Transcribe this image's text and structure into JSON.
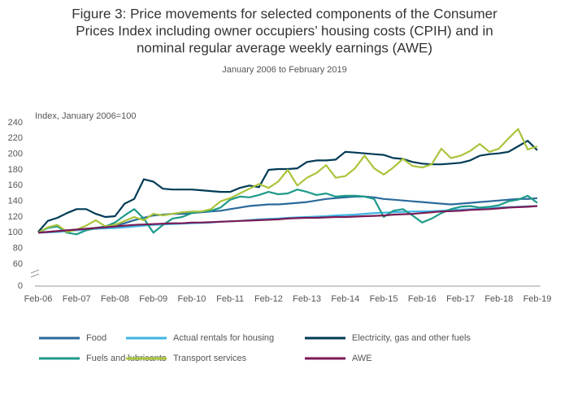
{
  "chart_data": {
    "type": "line",
    "title": [
      "Figure 3: Price movements for selected components of the Consumer",
      "Prices Index including owner occupiers’ housing costs (CPIH) and in",
      "nominal regular average weekly earnings (AWE)"
    ],
    "subtitle": "January 2006 to February 2019",
    "y_axis_label": "Index, January 2006=100",
    "categories": [
      "Feb-06",
      null,
      null,
      null,
      "Feb-07",
      null,
      null,
      null,
      "Feb-08",
      null,
      null,
      null,
      "Feb-09",
      null,
      null,
      null,
      "Feb-10",
      null,
      null,
      null,
      "Feb-11",
      null,
      null,
      null,
      "Feb-12",
      null,
      null,
      null,
      "Feb-13",
      null,
      null,
      null,
      "Feb-14",
      null,
      null,
      null,
      "Feb-15",
      null,
      null,
      null,
      "Feb-16",
      null,
      null,
      null,
      "Feb-17",
      null,
      null,
      null,
      "Feb-18",
      null,
      null,
      null,
      "Feb-19"
    ],
    "ylim": [
      0,
      240
    ],
    "yticks": [
      0,
      60,
      80,
      100,
      120,
      140,
      160,
      180,
      200,
      220,
      240
    ],
    "y_axis_break": [
      0,
      60
    ],
    "series": [
      {
        "name": "Food",
        "color": "#2b6a9b",
        "values": [
          100,
          101,
          102,
          103,
          104,
          105,
          106,
          107,
          109,
          112,
          116,
          119,
          122,
          123,
          124,
          124,
          125,
          126,
          127,
          128,
          130,
          132,
          134,
          135,
          136,
          136,
          137,
          138,
          139,
          141,
          143,
          144,
          145,
          146,
          146,
          145,
          143,
          142,
          141,
          140,
          139,
          138,
          137,
          136,
          137,
          138,
          139,
          140,
          141,
          142,
          143,
          143,
          144
        ]
      },
      {
        "name": "Actual rentals for housing",
        "color": "#3db4e6",
        "values": [
          100,
          100.5,
          101,
          102,
          103,
          104,
          105,
          105.5,
          106,
          107,
          108,
          109,
          110,
          110.5,
          111,
          111.5,
          112,
          112.5,
          113,
          114,
          114.5,
          115,
          116,
          117,
          117.5,
          118,
          119,
          119.5,
          120,
          120.5,
          121,
          122,
          122.5,
          123,
          124,
          125,
          125.5,
          126,
          126.5,
          127,
          127,
          127.5,
          128,
          129,
          129.5,
          130,
          130.5,
          131,
          132,
          132.5,
          133,
          133.5,
          134
        ]
      },
      {
        "name": "Electricity, gas and other fuels",
        "color": "#003b55",
        "values": [
          101,
          115,
          119,
          125,
          130,
          130,
          124,
          120,
          121,
          137,
          143,
          168,
          165,
          156,
          155,
          155,
          155,
          154,
          153,
          152,
          152,
          157,
          160,
          158,
          180,
          181,
          181,
          182,
          190,
          192,
          192,
          193,
          203,
          202,
          201,
          200,
          199,
          195,
          194,
          190,
          188,
          187,
          187,
          188,
          189,
          192,
          198,
          200,
          201,
          203,
          210,
          217,
          205
        ]
      },
      {
        "name": "Fuels and lubricants",
        "color": "#1e9a89",
        "values": [
          100,
          106,
          108,
          100,
          98,
          103,
          106,
          108,
          113,
          122,
          130,
          118,
          100,
          110,
          118,
          120,
          125,
          127,
          128,
          132,
          142,
          146,
          145,
          148,
          152,
          149,
          150,
          155,
          152,
          148,
          150,
          146,
          147,
          147,
          146,
          143,
          120,
          128,
          130,
          122,
          113,
          118,
          125,
          130,
          133,
          134,
          132,
          133,
          135,
          140,
          142,
          147,
          138
        ]
      },
      {
        "name": "Transport services",
        "color": "#a9c43c",
        "values": [
          100,
          107,
          110,
          101,
          104,
          109,
          116,
          108,
          110,
          115,
          120,
          116,
          124,
          122,
          124,
          126,
          127,
          127,
          130,
          140,
          144,
          150,
          156,
          162,
          157,
          165,
          180,
          160,
          170,
          176,
          186,
          170,
          172,
          182,
          198,
          182,
          174,
          183,
          194,
          185,
          183,
          187,
          207,
          195,
          198,
          204,
          213,
          203,
          207,
          220,
          232,
          206,
          210
        ]
      },
      {
        "name": "AWE",
        "color": "#7a1a53",
        "values": [
          100,
          101,
          102,
          103,
          104,
          105,
          106,
          107,
          108,
          109,
          110,
          110.5,
          111,
          111.5,
          112,
          112,
          113,
          113,
          113.5,
          114,
          114.5,
          115,
          115.5,
          116,
          116.5,
          117,
          118,
          118.5,
          119,
          119,
          119.5,
          120,
          120,
          120.5,
          121,
          121.5,
          122,
          123,
          123.5,
          124,
          125,
          126,
          127,
          127.5,
          128,
          129,
          129.5,
          130,
          131,
          132,
          132.5,
          133,
          134
        ]
      }
    ]
  }
}
